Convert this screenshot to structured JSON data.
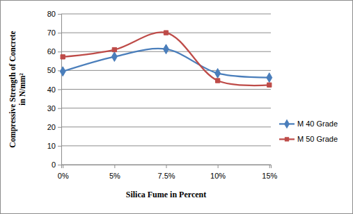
{
  "chart_data": {
    "type": "line",
    "x_label": "Silica Fume in Percent",
    "y_label": [
      "Compressive Strength of Concrete",
      "in N/mm²"
    ],
    "categories": [
      "0%",
      "5%",
      "7.5%",
      "10%",
      "15%"
    ],
    "series": [
      {
        "name": "M 40 Grade",
        "color": "#4a7ebb",
        "marker": "diamond",
        "line_style": "smooth",
        "values": [
          49.5,
          57.3,
          61.3,
          48.5,
          46.2
        ]
      },
      {
        "name": "M 50 Grade",
        "color": "#be4b48",
        "marker": "square",
        "line_style": "smooth",
        "values": [
          57.2,
          61.0,
          70.0,
          44.6,
          42.3
        ]
      }
    ],
    "ylim": [
      0,
      80
    ],
    "yticks": [
      0,
      10,
      20,
      30,
      40,
      50,
      60,
      70,
      80
    ],
    "grid": true,
    "legend": "right"
  }
}
